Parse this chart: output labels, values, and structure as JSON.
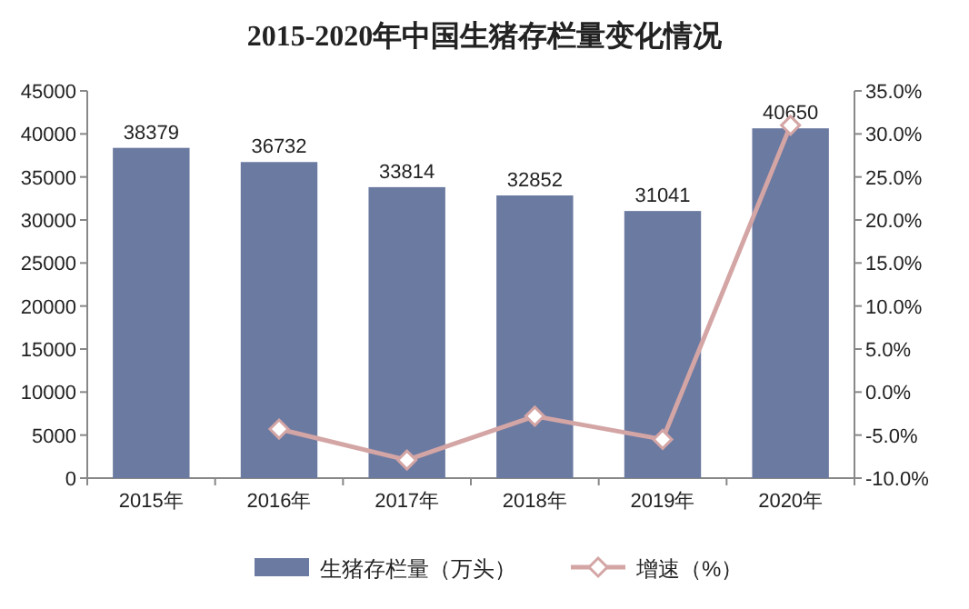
{
  "chart_data": {
    "type": "bar",
    "title": "2015-2020年中国生猪存栏量变化情况",
    "categories": [
      "2015年",
      "2016年",
      "2017年",
      "2018年",
      "2019年",
      "2020年"
    ],
    "series": [
      {
        "name": "生猪存栏量（万头）",
        "color": "#6b7aa1",
        "values": [
          38379,
          36732,
          33814,
          32852,
          31041,
          40650
        ],
        "value_labels": [
          "38379",
          "36732",
          "33814",
          "32852",
          "31041",
          "40650"
        ]
      },
      {
        "name": "增速（%）",
        "type": "line",
        "axis": "y2",
        "color": "#d4a5a5",
        "marker": "diamond",
        "values": [
          null,
          -4.3,
          -7.9,
          -2.8,
          -5.5,
          31.0
        ]
      }
    ],
    "ylim": [
      0,
      45000
    ],
    "yticks": [
      0,
      5000,
      10000,
      15000,
      20000,
      25000,
      30000,
      35000,
      40000,
      45000
    ],
    "y2lim": [
      -10,
      35
    ],
    "y2ticks": [
      {
        "value": -10,
        "label": "-10.0%"
      },
      {
        "value": -5,
        "label": "-5.0%"
      },
      {
        "value": 0,
        "label": "0.0%"
      },
      {
        "value": 5,
        "label": "5.0%"
      },
      {
        "value": 10,
        "label": "10.0%"
      },
      {
        "value": 15,
        "label": "15.0%"
      },
      {
        "value": 20,
        "label": "20.0%"
      },
      {
        "value": 25,
        "label": "25.0%"
      },
      {
        "value": 30,
        "label": "30.0%"
      },
      {
        "value": 35,
        "label": "35.0%"
      }
    ],
    "legend": "bottom"
  }
}
